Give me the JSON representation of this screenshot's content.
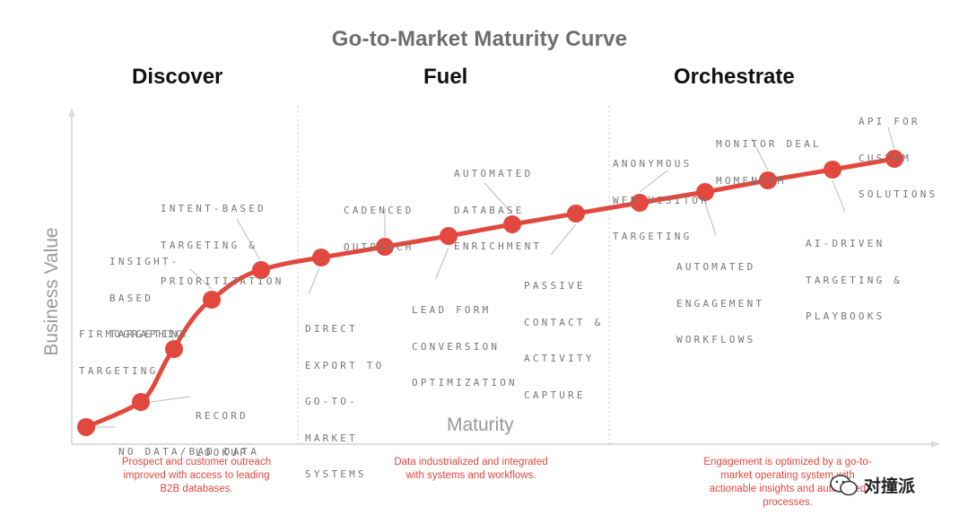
{
  "title": "Go-to-Market Maturity Curve",
  "phases": [
    "Discover",
    "Fuel",
    "Orchestrate"
  ],
  "y_axis_label": "Business Value",
  "x_axis_label": "Maturity",
  "milestones": [
    {
      "name": "no-data",
      "lines": [
        "NO DATA/BAD DATA"
      ]
    },
    {
      "name": "record-lookup",
      "lines": [
        "RECORD",
        "LOOKUP"
      ]
    },
    {
      "name": "firmographic-targeting",
      "lines": [
        "FIRMOGRAPHIC",
        "TARGETING"
      ]
    },
    {
      "name": "insight-based-targeting",
      "lines": [
        "INSIGHT-",
        "BASED",
        "TARGETING"
      ]
    },
    {
      "name": "intent-based-targeting",
      "lines": [
        "INTENT-BASED",
        "TARGETING &",
        "PRIORITIZATION"
      ]
    },
    {
      "name": "direct-export",
      "lines": [
        "DIRECT",
        "EXPORT TO",
        "GO-TO-",
        "MARKET",
        "SYSTEMS"
      ]
    },
    {
      "name": "cadenced-outreach",
      "lines": [
        "CADENCED",
        "OUTREACH"
      ]
    },
    {
      "name": "lead-form-conversion",
      "lines": [
        "LEAD FORM",
        "CONVERSION",
        "OPTIMIZATION"
      ]
    },
    {
      "name": "automated-database-enrichment",
      "lines": [
        "AUTOMATED",
        "DATABASE",
        "ENRICHMENT"
      ]
    },
    {
      "name": "passive-contact-capture",
      "lines": [
        "PASSIVE",
        "CONTACT &",
        "ACTIVITY",
        "CAPTURE"
      ]
    },
    {
      "name": "anonymous-web-visitor-targeting",
      "lines": [
        "ANONYMOUS",
        "WEB VISITOR",
        "TARGETING"
      ]
    },
    {
      "name": "automated-engagement-workflows",
      "lines": [
        "AUTOMATED",
        "ENGAGEMENT",
        "WORKFLOWS"
      ]
    },
    {
      "name": "monitor-deal-momentum",
      "lines": [
        "MONITOR DEAL",
        "MOMENTUM"
      ]
    },
    {
      "name": "ai-driven-targeting",
      "lines": [
        "AI-DRIVEN",
        "TARGETING &",
        "PLAYBOOKS"
      ]
    },
    {
      "name": "api-custom-solutions",
      "lines": [
        "API FOR",
        "CUSTOM",
        "SOLUTIONS"
      ]
    }
  ],
  "descriptions": [
    [
      "Prospect and customer outreach",
      "improved with access to leading",
      "B2B databases."
    ],
    [
      "Data industrialized and integrated",
      "with systems and workflows."
    ],
    [
      "Engagement is optimized by a go-to-",
      "market operating system with",
      "actionable insights and automated",
      "processes."
    ]
  ],
  "watermark": "对撞派",
  "colors": {
    "accent": "#e2483d",
    "axis": "#dddddd",
    "text": "#777777"
  }
}
